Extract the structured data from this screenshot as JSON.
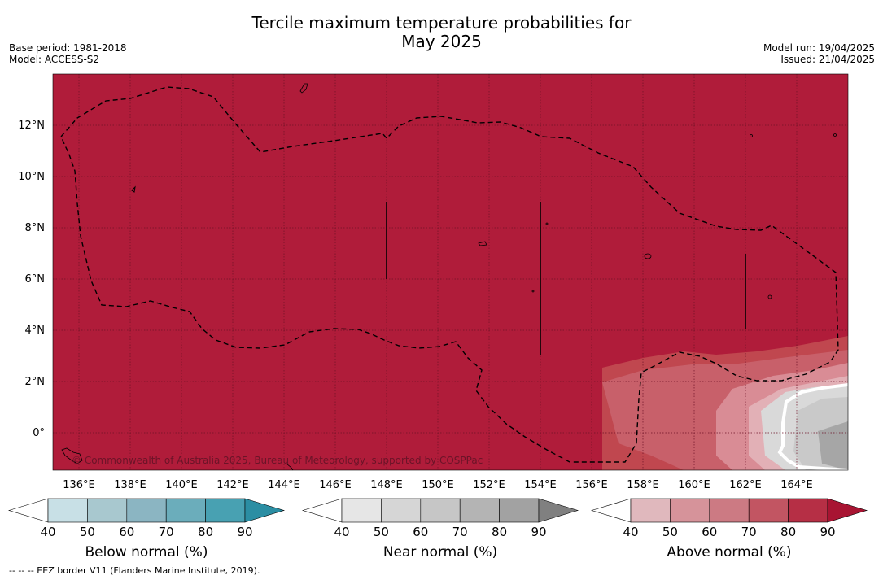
{
  "title_line1": "Tercile maximum temperature probabilities for",
  "title_line2": "May 2025",
  "base_period": "Base period: 1981-2018",
  "model": "Model: ACCESS-S2",
  "model_run": "Model run: 19/04/2025",
  "issued": "Issued: 21/04/2025",
  "copyright": "© Commonwealth of Australia 2025, Bureau of Meteorology, supported by COSPPac",
  "footer": "--  --  -- EEZ border V11 (Flanders Marine Institute, 2019).",
  "map": {
    "lat_labels": [
      "12°N",
      "10°N",
      "8°N",
      "6°N",
      "4°N",
      "2°N",
      "0°"
    ],
    "lon_labels": [
      "136°E",
      "138°E",
      "140°E",
      "142°E",
      "144°E",
      "146°E",
      "148°E",
      "150°E",
      "152°E",
      "154°E",
      "156°E",
      "158°E",
      "160°E",
      "162°E",
      "164°E"
    ],
    "background_color": "#b01c3a",
    "legend_ticks": [
      "40",
      "50",
      "60",
      "70",
      "80",
      "90"
    ]
  },
  "colorbars": [
    {
      "title": "Below normal (%)",
      "colors": [
        "#ffffff",
        "#c8e0e6",
        "#a8c8cf",
        "#8bb5c2",
        "#6badbb",
        "#48a1b2",
        "#2b8ea3"
      ]
    },
    {
      "title": "Near normal (%)",
      "colors": [
        "#ffffff",
        "#e6e6e6",
        "#d6d6d6",
        "#c6c6c6",
        "#b4b4b4",
        "#a2a2a2",
        "#808080"
      ]
    },
    {
      "title": "Above normal (%)",
      "colors": [
        "#ffffff",
        "#e0b8bd",
        "#d6939a",
        "#cc7a83",
        "#c25562",
        "#b62f45",
        "#a81432"
      ]
    }
  ]
}
